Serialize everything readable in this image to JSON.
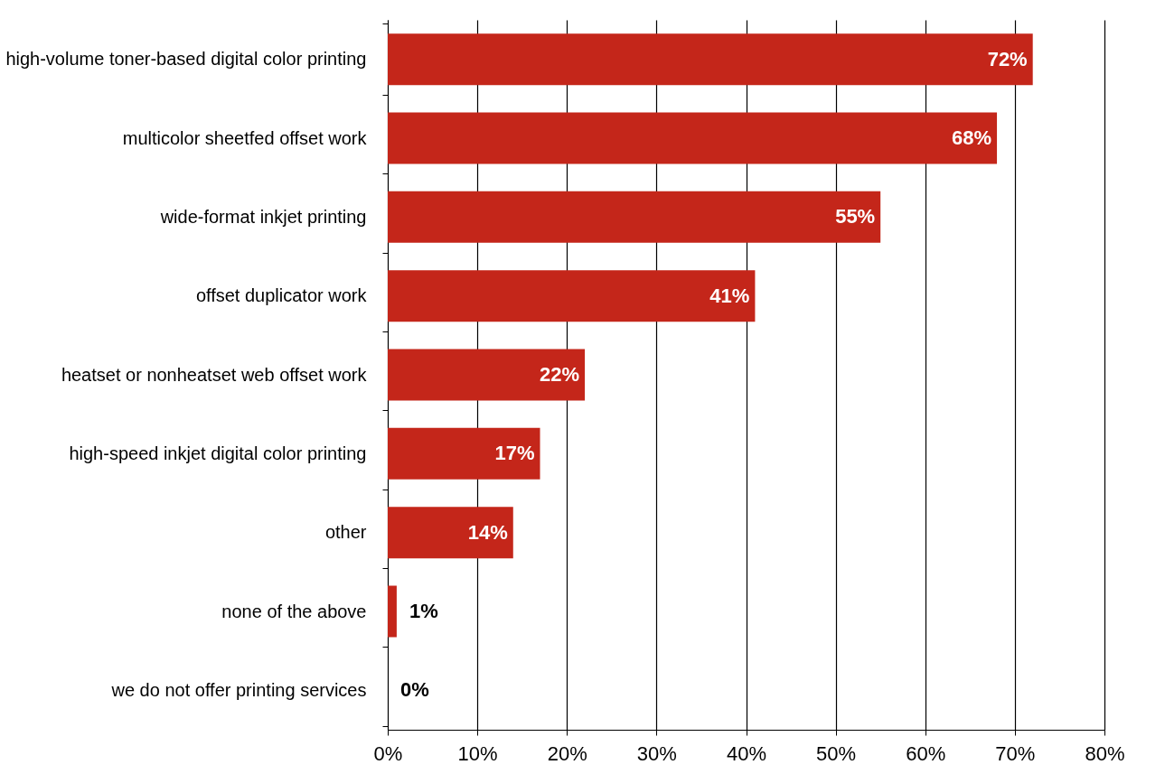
{
  "chart_data": {
    "type": "bar",
    "orientation": "horizontal",
    "categories": [
      "high-volume toner-based digital color printing",
      "multicolor sheetfed offset work",
      "wide-format inkjet printing",
      "offset duplicator work",
      "heatset or nonheatset web offset work",
      "high-speed inkjet digital color printing",
      "other",
      "none of the above",
      "we do not offer printing services"
    ],
    "values": [
      72,
      68,
      55,
      41,
      22,
      17,
      14,
      1,
      0
    ],
    "color": "#c4261a",
    "xlim": [
      0,
      80
    ],
    "xticks": [
      {
        "value": 0,
        "label": "0%"
      },
      {
        "value": 10,
        "label": "10%"
      },
      {
        "value": 20,
        "label": "20%"
      },
      {
        "value": 30,
        "label": "30%"
      },
      {
        "value": 40,
        "label": "40%"
      },
      {
        "value": 50,
        "label": "50%"
      },
      {
        "value": 60,
        "label": "60%"
      },
      {
        "value": 70,
        "label": "70%"
      },
      {
        "value": 80,
        "label": "80%"
      }
    ],
    "grid": "x",
    "data_labels": true,
    "value_labels": [
      "72%",
      "68%",
      "55%",
      "41%",
      "22%",
      "17%",
      "14%",
      "1%",
      "0%"
    ]
  }
}
